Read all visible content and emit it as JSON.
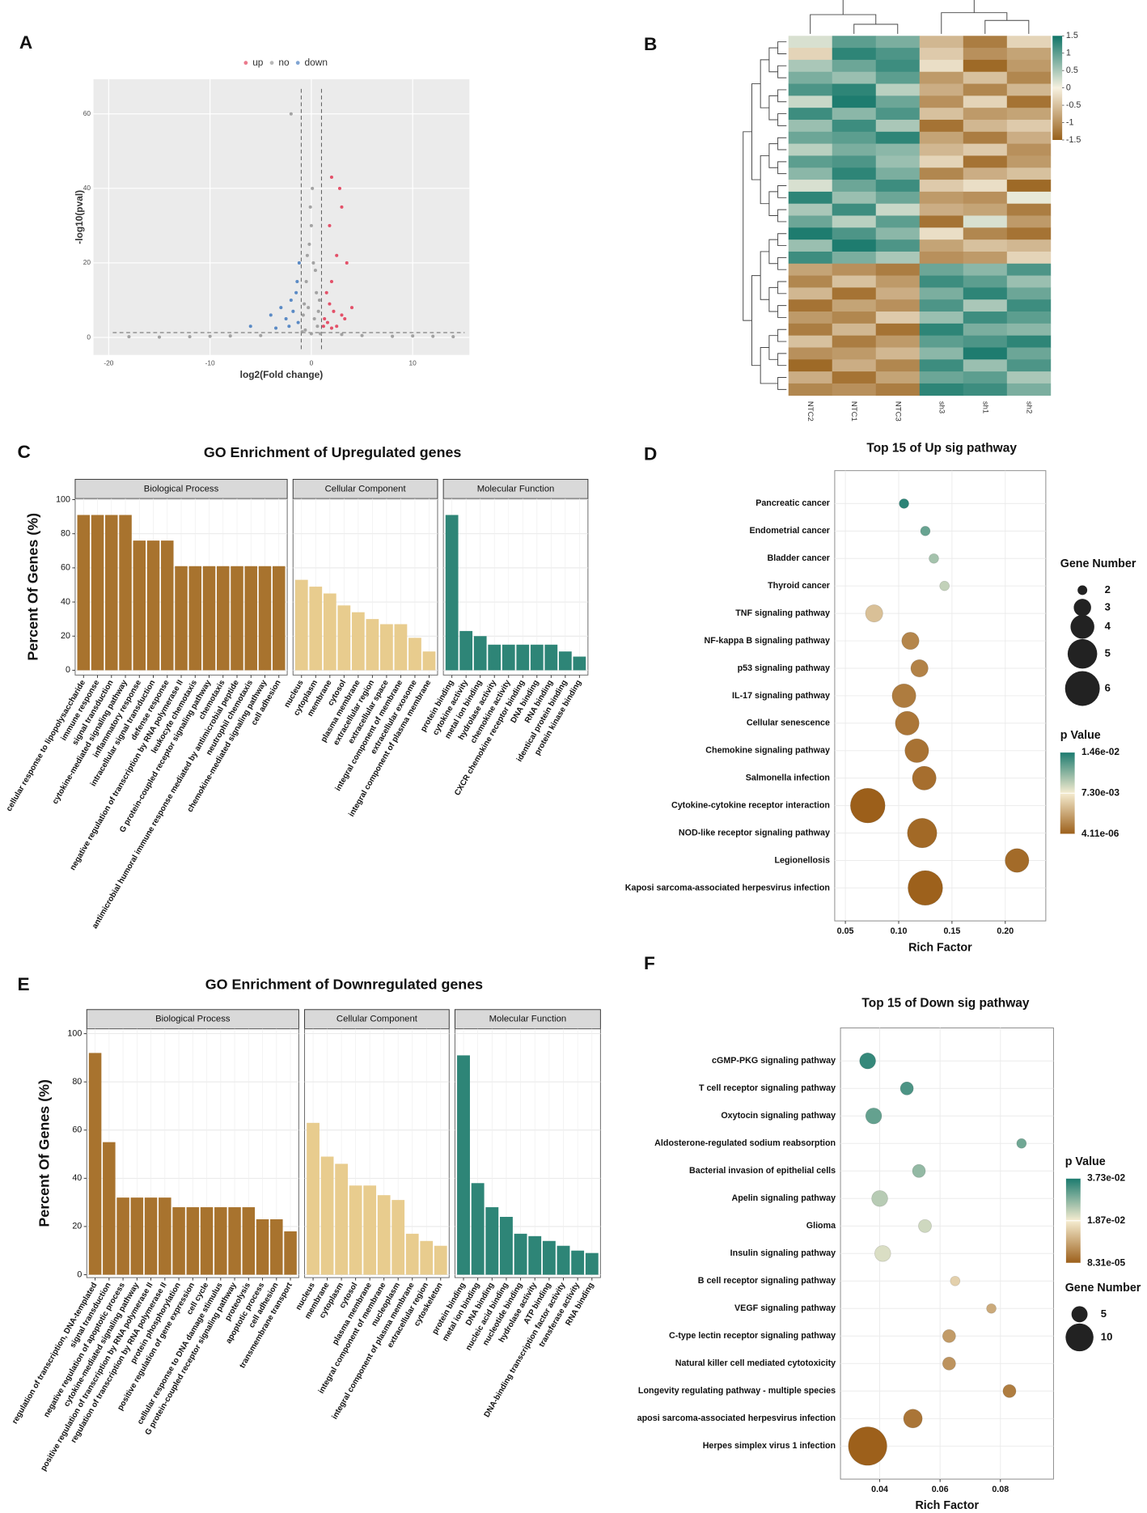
{
  "chart_data": [
    {
      "type": "scatter",
      "label": "A",
      "xlabel": "log2(Fold change)",
      "ylabel": "-log10(pval)",
      "xlim": [
        -21.5,
        15.6
      ],
      "ylim": [
        -4.7,
        69.3
      ],
      "xticks": [
        -20,
        -10,
        0,
        10
      ],
      "yticks": [
        0,
        20,
        40,
        60
      ],
      "vlines": [
        -1,
        1
      ],
      "hline": 1.3,
      "grid": true,
      "series": [
        {
          "name": "up",
          "color": "#e2405b",
          "x": [
            1.5,
            2,
            2.5,
            3,
            2.8,
            2,
            3.5,
            1.8,
            2.2,
            3,
            4,
            1.3,
            1.6,
            2.5,
            3.3,
            1.2,
            2,
            1.8
          ],
          "y": [
            12,
            15,
            22,
            35,
            40,
            43,
            20,
            9,
            7,
            6,
            8,
            5,
            4,
            3,
            5,
            3,
            2.5,
            30
          ]
        },
        {
          "name": "no",
          "color": "#9a9a9a",
          "x": [
            0,
            0.3,
            -0.3,
            0.5,
            -0.5,
            0.2,
            -0.2,
            0.6,
            -0.6,
            0.8,
            -0.8,
            0,
            0.1,
            -0.1,
            0.4,
            -0.4,
            -2,
            5,
            8,
            -8,
            -12,
            12,
            -15,
            -18,
            3,
            -5,
            14,
            10,
            -10,
            0.9,
            -0.9,
            0.7,
            -0.7
          ],
          "y": [
            1,
            5,
            8,
            12,
            15,
            20,
            25,
            3,
            2,
            10,
            6,
            30,
            40,
            35,
            18,
            22,
            60,
            0.5,
            0.3,
            0.4,
            0.2,
            0.3,
            0.1,
            0.2,
            0.8,
            0.5,
            0.2,
            0.4,
            0.3,
            1,
            1.5,
            7,
            9
          ]
        },
        {
          "name": "down",
          "color": "#4a7fc1",
          "x": [
            -1.5,
            -2,
            -3,
            -2.5,
            -6,
            -4,
            -1.3,
            -1.8,
            -2.2,
            -3.5,
            -1.2,
            -1.4
          ],
          "y": [
            12,
            10,
            8,
            5,
            3,
            6,
            4,
            7,
            3,
            2.5,
            20,
            15
          ]
        }
      ]
    },
    {
      "type": "heatmap",
      "label": "B",
      "columns": [
        "NTC2",
        "NTC1",
        "NTC3",
        "sh3",
        "sh1",
        "sh2"
      ],
      "zlim": [
        -1.5,
        1.5
      ],
      "zticks": [
        1.5,
        1,
        0.5,
        0,
        -0.5,
        -1,
        -1.5
      ],
      "colors": {
        "low": "#98601a",
        "mid": "#f7f1e0",
        "high": "#0f7467"
      },
      "values": [
        [
          0.2,
          1.0,
          0.8,
          -0.6,
          -1.2,
          -0.3
        ],
        [
          -0.3,
          1.3,
          1.1,
          -0.4,
          -1.0,
          -0.8
        ],
        [
          0.5,
          0.9,
          1.2,
          -0.2,
          -1.4,
          -0.9
        ],
        [
          0.8,
          0.6,
          1.0,
          -0.9,
          -0.5,
          -1.1
        ],
        [
          1.1,
          1.3,
          0.4,
          -0.7,
          -1.1,
          -0.6
        ],
        [
          0.3,
          1.4,
          0.9,
          -1.0,
          -0.3,
          -1.3
        ],
        [
          1.2,
          0.7,
          1.1,
          -0.5,
          -0.9,
          -0.8
        ],
        [
          0.6,
          1.2,
          0.5,
          -1.3,
          -0.6,
          -0.4
        ],
        [
          0.9,
          1.0,
          1.3,
          -0.8,
          -1.2,
          -0.7
        ],
        [
          0.4,
          0.8,
          0.7,
          -0.6,
          -0.4,
          -1.0
        ],
        [
          1.0,
          1.1,
          0.6,
          -0.3,
          -1.3,
          -0.9
        ],
        [
          0.7,
          1.3,
          0.8,
          -1.1,
          -0.7,
          -0.5
        ],
        [
          0.2,
          0.9,
          1.2,
          -0.4,
          -0.2,
          -1.4
        ],
        [
          1.3,
          0.6,
          0.9,
          -0.9,
          -1.0,
          0.1
        ],
        [
          0.5,
          1.2,
          0.3,
          -0.7,
          -0.8,
          -1.2
        ],
        [
          0.9,
          0.4,
          1.0,
          -1.3,
          0.2,
          -0.9
        ],
        [
          1.4,
          1.1,
          0.7,
          -0.2,
          -1.1,
          -1.3
        ],
        [
          0.6,
          1.4,
          1.1,
          -0.8,
          -0.5,
          -0.6
        ],
        [
          1.2,
          0.8,
          0.5,
          -1.0,
          -0.9,
          -0.3
        ],
        [
          -0.8,
          -1.0,
          -1.2,
          0.9,
          0.7,
          1.1
        ],
        [
          -1.1,
          -0.5,
          -0.9,
          1.2,
          1.0,
          0.6
        ],
        [
          -0.6,
          -1.3,
          -0.7,
          0.8,
          1.3,
          0.9
        ],
        [
          -1.3,
          -0.8,
          -1.0,
          1.1,
          0.5,
          1.2
        ],
        [
          -0.9,
          -1.1,
          -0.4,
          0.6,
          1.2,
          1.0
        ],
        [
          -1.2,
          -0.6,
          -1.3,
          1.3,
          0.8,
          0.7
        ],
        [
          -0.5,
          -1.2,
          -0.9,
          1.0,
          1.1,
          1.3
        ],
        [
          -1.0,
          -0.9,
          -0.6,
          0.7,
          1.4,
          0.9
        ],
        [
          -1.4,
          -0.7,
          -1.1,
          1.2,
          0.6,
          1.1
        ],
        [
          -0.7,
          -1.3,
          -0.8,
          0.9,
          1.0,
          0.5
        ],
        [
          -1.1,
          -1.0,
          -1.2,
          1.3,
          1.2,
          0.8
        ]
      ]
    },
    {
      "type": "facet_bar",
      "label": "C",
      "title": "GO Enrichment of Upregulated genes",
      "ylabel": "Percent Of Genes (%)",
      "ylim": [
        -2.8,
        100.6
      ],
      "yticks": [
        0,
        20,
        40,
        60,
        80,
        100
      ],
      "grid": true,
      "facets": [
        {
          "name": "Biological Process",
          "color": "#a8732e",
          "categories": [
            "cellular response to lipopolysaccharide",
            "immune response",
            "signal transduction",
            "cytokine-mediated signaling pathway",
            "inflammatory response",
            "intracellular signal transduction",
            "defense response",
            "negative regulation of transcription by RNA polymerase II",
            "leukocyte chemotaxis",
            "G protein-coupled receptor signaling pathway",
            "chemotaxis",
            "antimicrobial humoral immune response mediated by antimicrobial peptide",
            "neutrophil chemotaxis",
            "chemokine-mediated signaling pathway",
            "cell adhesion"
          ],
          "values": [
            91,
            91,
            91,
            91,
            76,
            76,
            76,
            61,
            61,
            61,
            61,
            61,
            61,
            61,
            61
          ]
        },
        {
          "name": "Cellular Component",
          "color": "#e8cc8e",
          "categories": [
            "nucleus",
            "cytoplasm",
            "membrane",
            "cytosol",
            "plasma membrane",
            "extracellular region",
            "extracellular space",
            "integral component of membrane",
            "extracellular exosome",
            "integral component of plasma membrane"
          ],
          "values": [
            53,
            49,
            45,
            38,
            34,
            30,
            27,
            27,
            19,
            11
          ]
        },
        {
          "name": "Molecular Function",
          "color": "#2e8577",
          "categories": [
            "protein binding",
            "cytokine activity",
            "metal ion binding",
            "hydrolase activity",
            "chemokine activity",
            "CXCR chemokine receptor binding",
            "DNA binding",
            "RNA binding",
            "identical protein binding",
            "protein kinase binding"
          ],
          "values": [
            91,
            23,
            20,
            15,
            15,
            15,
            15,
            15,
            11,
            8
          ]
        }
      ]
    },
    {
      "type": "bubble",
      "label": "D",
      "title": "Top 15 of Up sig pathway",
      "xlabel": "Rich Factor",
      "xlim": [
        0.04,
        0.238
      ],
      "xticks": [
        {
          "value": 0.05,
          "label": "0.05"
        },
        {
          "value": 0.1,
          "label": "0.10"
        },
        {
          "value": 0.15,
          "label": "0.15"
        },
        {
          "value": 0.2,
          "label": "0.20"
        }
      ],
      "categories": [
        "Pancreatic cancer",
        "Endometrial cancer",
        "Bladder cancer",
        "Thyroid cancer",
        "TNF signaling pathway",
        "NF-kappa B signaling pathway",
        "p53 signaling pathway",
        "IL-17 signaling pathway",
        "Cellular senescence",
        "Chemokine signaling pathway",
        "Salmonella infection",
        "Cytokine-cytokine receptor interaction",
        "NOD-like receptor signaling pathway",
        "Legionellosis",
        "Kaposi sarcoma-associated herpesvirus infection"
      ],
      "values": [
        0.105,
        0.125,
        0.133,
        0.143,
        0.077,
        0.111,
        0.1195,
        0.105,
        0.108,
        0.117,
        0.124,
        0.071,
        0.122,
        0.211,
        0.125
      ],
      "sizes": [
        2,
        2,
        2,
        2,
        3,
        3,
        3,
        4,
        4,
        4,
        4,
        6,
        5,
        4,
        6
      ],
      "pvalues": [
        0.014,
        0.012,
        0.01,
        0.009,
        0.005,
        0.002,
        0.0018,
        0.0015,
        0.0012,
        0.001,
        0.0008,
        1e-05,
        0.0005,
        0.0006,
        0.0001
      ],
      "size_legend": {
        "title": "Gene Number",
        "values": [
          2,
          3,
          4,
          5,
          6
        ]
      },
      "color_legend": {
        "title": "p Value",
        "ticks": [
          {
            "value": 0.0146,
            "label": "1.46e-02"
          },
          {
            "value": 0.0073,
            "label": "7.30e-03"
          },
          {
            "value": 4.11e-06,
            "label": "4.11e-06"
          }
        ]
      },
      "colors": {
        "low": "#9c5f1a",
        "mid": "#f5ecd0",
        "high": "#1a7a6e"
      }
    },
    {
      "type": "facet_bar",
      "label": "E",
      "title": "GO Enrichment of Downregulated genes",
      "ylabel": "Percent Of Genes (%)",
      "ylim": [
        -1.2,
        102
      ],
      "yticks": [
        0,
        20,
        40,
        60,
        80,
        100
      ],
      "grid": true,
      "facets": [
        {
          "name": "Biological Process",
          "color": "#a8732e",
          "categories": [
            "regulation of transcription, DNA-templated",
            "signal transduction",
            "negative regulation of apoptotic process",
            "cytokine-mediated signaling pathway",
            "positive regulation of transcription by RNA polymerase II",
            "regulation of transcription by RNA polymerase II",
            "protein phosphorylation",
            "positive regulation of gene expression",
            "cell cycle",
            "cellular response to DNA damage stimulus",
            "G protein-coupled receptor signaling pathway",
            "proteolysis",
            "apoptotic process",
            "cell adhesion",
            "transmembrane transport"
          ],
          "values": [
            92,
            55,
            32,
            32,
            32,
            32,
            28,
            28,
            28,
            28,
            28,
            28,
            23,
            23,
            18
          ]
        },
        {
          "name": "Cellular Component",
          "color": "#e8cc8e",
          "categories": [
            "nucleus",
            "membrane",
            "cytoplasm",
            "cytosol",
            "plasma membrane",
            "integral component of membrane",
            "nucleoplasm",
            "integral component of plasma membrane",
            "extracellular region",
            "cytoskeleton"
          ],
          "values": [
            63,
            49,
            46,
            37,
            37,
            33,
            31,
            17,
            14,
            12
          ]
        },
        {
          "name": "Molecular Function",
          "color": "#2e8577",
          "categories": [
            "protein binding",
            "metal ion binding",
            "DNA binding",
            "nucleic acid binding",
            "nucleotide binding",
            "hydrolase activity",
            "ATP binding",
            "DNA-binding transcription factor activity",
            "transferase activity",
            "RNA binding"
          ],
          "values": [
            91,
            38,
            28,
            24,
            17,
            16,
            14,
            12,
            10,
            9
          ]
        }
      ]
    },
    {
      "type": "bubble",
      "label": "F",
      "title": "Top 15 of Down sig pathway",
      "xlabel": "Rich Factor",
      "xlim": [
        0.027,
        0.0976
      ],
      "xticks": [
        {
          "value": 0.04,
          "label": "0.04"
        },
        {
          "value": 0.06,
          "label": "0.06"
        },
        {
          "value": 0.08,
          "label": "0.08"
        }
      ],
      "categories": [
        "cGMP-PKG signaling pathway",
        "T cell receptor signaling pathway",
        "Oxytocin signaling pathway",
        "Aldosterone-regulated sodium reabsorption",
        "Bacterial invasion of epithelial cells",
        "Apelin signaling pathway",
        "Glioma",
        "Insulin signaling pathway",
        "B cell receptor signaling pathway",
        "VEGF signaling pathway",
        "C-type lectin receptor signaling pathway",
        "Natural killer cell mediated cytotoxicity",
        "Longevity regulating pathway - multiple species",
        "aposi sarcoma-associated herpesvirus infection",
        "Herpes simplex virus 1 infection"
      ],
      "values": [
        0.036,
        0.049,
        0.038,
        0.087,
        0.053,
        0.04,
        0.055,
        0.041,
        0.065,
        0.077,
        0.063,
        0.063,
        0.083,
        0.051,
        0.036
      ],
      "sizes": [
        5,
        4,
        5,
        3,
        4,
        5,
        4,
        5,
        3,
        3,
        4,
        4,
        4,
        6,
        16
      ],
      "pvalues": [
        0.035,
        0.033,
        0.031,
        0.03,
        0.027,
        0.024,
        0.022,
        0.021,
        0.015,
        0.01,
        0.008,
        0.007,
        0.004,
        0.003,
        0.0002
      ],
      "size_legend": {
        "title": "Gene Number",
        "values": [
          5,
          10
        ]
      },
      "color_legend": {
        "title": "p Value",
        "ticks": [
          {
            "value": 0.0373,
            "label": "3.73e-02"
          },
          {
            "value": 0.0187,
            "label": "1.87e-02"
          },
          {
            "value": 8.31e-05,
            "label": "8.31e-05"
          }
        ]
      },
      "colors": {
        "low": "#9c5f1a",
        "mid": "#f5ecd0",
        "high": "#1a7a6e"
      }
    }
  ]
}
